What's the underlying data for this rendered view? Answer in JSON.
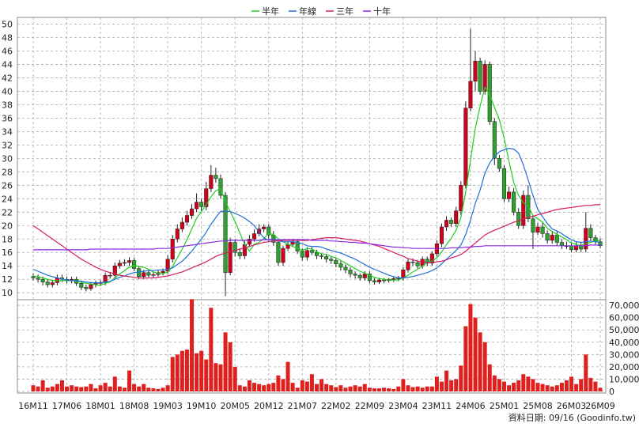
{
  "chart_data": {
    "type": "candlestick",
    "categories": [
      "16M11",
      null,
      null,
      null,
      null,
      null,
      null,
      "17M06",
      null,
      null,
      null,
      null,
      null,
      null,
      "18M01",
      null,
      null,
      null,
      null,
      null,
      null,
      "18M08",
      null,
      null,
      null,
      null,
      null,
      null,
      "19M03",
      null,
      null,
      null,
      null,
      null,
      null,
      "19M10",
      null,
      null,
      null,
      null,
      null,
      null,
      "20M05",
      null,
      null,
      null,
      null,
      null,
      null,
      "20M12",
      null,
      null,
      null,
      null,
      null,
      null,
      "21M07",
      null,
      null,
      null,
      null,
      null,
      null,
      "22M02",
      null,
      null,
      null,
      null,
      null,
      null,
      "22M09",
      null,
      null,
      null,
      null,
      null,
      null,
      "23M04",
      null,
      null,
      null,
      null,
      null,
      null,
      "23M11",
      null,
      null,
      null,
      null,
      null,
      null,
      "24M06",
      null,
      null,
      null,
      null,
      null,
      null,
      "25M01",
      null,
      null,
      null,
      null,
      null,
      null,
      "25M08",
      null,
      null,
      null,
      null,
      null,
      null,
      "26M03",
      null,
      null,
      null,
      null,
      null,
      "26M09"
    ],
    "open": [
      12.4,
      12.2,
      12.0,
      11.6,
      11.2,
      11.5,
      12.2,
      12.0,
      11.8,
      12.0,
      11.4,
      10.8,
      10.6,
      11.2,
      11.4,
      11.5,
      12.6,
      12.6,
      14.0,
      14.4,
      14.5,
      14.8,
      13.6,
      12.4,
      13.0,
      12.6,
      12.7,
      13.0,
      13.2,
      15.0,
      18.0,
      19.5,
      20.5,
      21.5,
      22.5,
      23.5,
      22.8,
      25.5,
      27.5,
      27.0,
      24.5,
      13.0,
      17.5,
      16.0,
      15.5,
      17.2,
      18.0,
      18.8,
      19.5,
      19.8,
      18.6,
      17.5,
      14.5,
      16.6,
      17.2,
      17.6,
      16.2,
      15.3,
      16.3,
      16.0,
      15.5,
      15.4,
      15.0,
      14.8,
      14.3,
      13.8,
      13.4,
      12.8,
      12.6,
      12.2,
      12.8,
      11.8,
      11.6,
      11.9,
      11.8,
      12.0,
      12.1,
      12.2,
      13.4,
      14.6,
      14.5,
      14.0,
      15.0,
      14.4,
      15.8,
      17.3,
      19.8,
      20.8,
      20.3,
      22.2,
      26.0,
      37.5,
      41.5,
      44.5,
      40.0,
      44.0,
      35.5,
      30.0,
      28.5,
      24.0,
      25.0,
      22.0,
      20.0,
      24.5,
      21.0,
      19.0,
      19.8,
      18.8,
      17.8,
      18.6,
      17.5,
      17.0,
      17.0,
      16.4,
      17.0,
      16.5,
      19.6,
      18.2,
      17.6
    ],
    "high": [
      12.9,
      12.7,
      12.4,
      12.0,
      11.9,
      12.7,
      12.7,
      12.4,
      12.4,
      12.4,
      11.8,
      11.2,
      11.6,
      11.8,
      11.9,
      13.0,
      13.1,
      14.5,
      14.9,
      15.0,
      15.3,
      15.2,
      14.0,
      13.4,
      13.4,
      13.1,
      13.4,
      13.6,
      15.6,
      18.6,
      20.2,
      21.2,
      22.2,
      23.2,
      24.8,
      24.0,
      26.5,
      29.0,
      28.6,
      27.6,
      25.0,
      18.2,
      18.0,
      16.6,
      17.8,
      18.6,
      19.4,
      20.2,
      20.2,
      20.2,
      19.2,
      18.0,
      17.0,
      17.6,
      18.0,
      18.0,
      16.6,
      16.8,
      16.8,
      16.4,
      15.9,
      15.8,
      15.4,
      15.2,
      14.7,
      14.2,
      13.8,
      13.2,
      12.9,
      13.2,
      13.2,
      12.2,
      12.2,
      12.2,
      12.2,
      12.4,
      12.5,
      13.8,
      15.0,
      15.1,
      14.9,
      15.4,
      15.4,
      16.2,
      17.8,
      20.3,
      21.4,
      21.2,
      22.8,
      26.6,
      38.5,
      49.3,
      46.0,
      45.0,
      44.6,
      44.4,
      36.0,
      30.5,
      29.0,
      25.8,
      25.6,
      22.6,
      25.2,
      26.0,
      21.5,
      20.4,
      20.4,
      19.3,
      19.2,
      19.1,
      18.0,
      17.6,
      17.5,
      17.6,
      17.4,
      22.0,
      20.2,
      18.6,
      18.1
    ],
    "low": [
      11.8,
      11.5,
      11.1,
      10.8,
      10.8,
      11.1,
      11.6,
      11.4,
      11.4,
      11.0,
      10.4,
      10.2,
      10.3,
      10.8,
      11.0,
      11.1,
      12.1,
      12.2,
      13.6,
      14.0,
      14.0,
      13.2,
      12.0,
      12.0,
      12.3,
      12.2,
      12.3,
      12.6,
      12.8,
      14.5,
      17.5,
      19.0,
      20.0,
      21.0,
      22.0,
      22.2,
      22.3,
      25.0,
      26.4,
      24.0,
      9.5,
      12.6,
      15.4,
      15.0,
      15.0,
      16.8,
      17.6,
      18.4,
      19.0,
      18.0,
      17.0,
      14.0,
      14.0,
      16.2,
      16.8,
      15.8,
      14.8,
      14.8,
      15.6,
      15.0,
      15.0,
      14.5,
      14.3,
      13.8,
      13.3,
      12.9,
      12.3,
      12.1,
      11.8,
      11.8,
      11.4,
      11.2,
      11.3,
      11.4,
      11.5,
      11.6,
      11.7,
      11.8,
      13.0,
      14.0,
      13.6,
      13.6,
      14.0,
      14.0,
      15.4,
      16.8,
      19.2,
      19.8,
      19.8,
      21.6,
      25.5,
      37.0,
      40.0,
      39.5,
      39.5,
      35.0,
      29.0,
      28.0,
      23.5,
      23.5,
      21.5,
      19.5,
      19.5,
      20.5,
      16.5,
      18.6,
      18.2,
      17.3,
      17.3,
      17.0,
      16.5,
      16.5,
      16.0,
      16.0,
      16.0,
      16.0,
      17.8,
      17.2,
      16.6
    ],
    "close": [
      12.2,
      12.0,
      11.6,
      11.2,
      11.5,
      12.2,
      12.0,
      11.8,
      12.0,
      11.4,
      10.8,
      10.6,
      11.2,
      11.4,
      11.5,
      12.6,
      12.6,
      14.0,
      14.4,
      14.5,
      14.8,
      13.6,
      12.4,
      13.0,
      12.6,
      12.7,
      13.0,
      13.2,
      15.0,
      18.0,
      19.5,
      20.5,
      21.5,
      22.5,
      23.5,
      22.8,
      25.5,
      27.5,
      27.0,
      24.5,
      13.0,
      17.5,
      16.0,
      15.5,
      17.2,
      18.0,
      18.8,
      19.5,
      19.8,
      18.6,
      17.5,
      14.5,
      16.6,
      17.2,
      17.6,
      16.2,
      15.3,
      16.3,
      16.0,
      15.5,
      15.4,
      15.0,
      14.8,
      14.3,
      13.8,
      13.4,
      12.8,
      12.6,
      12.2,
      12.8,
      11.8,
      11.6,
      11.9,
      11.8,
      12.0,
      12.1,
      12.2,
      13.4,
      14.6,
      14.5,
      14.0,
      15.0,
      14.4,
      15.8,
      17.3,
      19.8,
      20.8,
      20.3,
      22.2,
      26.0,
      37.5,
      41.5,
      44.5,
      40.0,
      44.0,
      35.5,
      30.0,
      28.5,
      24.0,
      25.0,
      22.0,
      20.0,
      24.5,
      21.0,
      19.0,
      19.8,
      18.8,
      17.8,
      18.6,
      17.5,
      17.0,
      17.0,
      16.4,
      17.0,
      16.5,
      19.6,
      18.2,
      17.6,
      17.0
    ],
    "up_color": "#d0021b",
    "down_color": "#2fa02f",
    "wick_color": "#222222",
    "series": [
      {
        "name": "半年",
        "color": "#22cc22",
        "values": [
          12.5,
          12.4,
          12.2,
          12.0,
          11.8,
          11.8,
          11.8,
          11.8,
          11.8,
          11.8,
          11.6,
          11.4,
          11.3,
          11.2,
          11.1,
          11.4,
          11.6,
          12.2,
          12.8,
          13.3,
          13.8,
          14.1,
          13.9,
          13.8,
          13.5,
          13.1,
          12.9,
          12.8,
          13.1,
          13.9,
          15.2,
          16.5,
          17.9,
          19.5,
          21.1,
          22.1,
          23.1,
          24.3,
          25.2,
          25.5,
          23.5,
          22.1,
          20.6,
          18.9,
          17.2,
          16.2,
          17.2,
          17.5,
          18.1,
          18.8,
          18.7,
          18.0,
          17.6,
          17.2,
          16.9,
          16.6,
          16.3,
          16.6,
          16.5,
          16.1,
          15.8,
          15.7,
          15.4,
          15.2,
          14.8,
          14.4,
          14.0,
          13.6,
          13.2,
          12.9,
          12.6,
          12.3,
          12.1,
          12.0,
          11.9,
          11.9,
          11.9,
          12.2,
          12.6,
          13.1,
          13.5,
          14.0,
          14.5,
          14.7,
          15.2,
          16.1,
          17.2,
          18.1,
          19.3,
          21.2,
          25.0,
          29.7,
          34.5,
          37.8,
          40.6,
          39.5,
          37.6,
          35.8,
          33.0,
          29.6,
          26.4,
          24.5,
          23.4,
          22.9,
          21.5,
          21.0,
          20.5,
          19.6,
          19.1,
          18.7,
          18.3,
          17.9,
          17.4,
          17.2,
          17.0,
          17.3,
          17.5,
          17.7,
          17.8
        ]
      },
      {
        "name": "年線",
        "color": "#1f6fd6",
        "values": [
          13.5,
          13.2,
          12.9,
          12.6,
          12.4,
          12.2,
          12.0,
          11.9,
          11.8,
          11.8,
          11.7,
          11.6,
          11.5,
          11.5,
          11.5,
          11.6,
          11.7,
          12.0,
          12.3,
          12.5,
          12.8,
          13.0,
          13.1,
          13.2,
          13.3,
          13.3,
          13.4,
          13.4,
          13.5,
          13.7,
          14.2,
          14.7,
          15.4,
          16.2,
          17.1,
          18.0,
          19.0,
          20.2,
          21.2,
          22.1,
          22.1,
          22.1,
          21.8,
          21.5,
          21.1,
          20.6,
          20.0,
          19.0,
          18.2,
          17.8,
          18.0,
          17.7,
          17.6,
          17.6,
          17.6,
          17.5,
          17.3,
          17.0,
          16.9,
          16.9,
          16.8,
          16.5,
          16.3,
          16.1,
          15.9,
          15.6,
          15.3,
          15.0,
          14.6,
          14.2,
          13.8,
          13.5,
          13.2,
          12.9,
          12.6,
          12.4,
          12.2,
          12.2,
          12.3,
          12.4,
          12.6,
          12.8,
          13.0,
          13.3,
          13.7,
          14.3,
          15.0,
          15.6,
          16.3,
          17.1,
          18.7,
          20.8,
          23.3,
          25.3,
          27.8,
          29.3,
          30.3,
          31.0,
          31.3,
          31.5,
          31.4,
          30.8,
          29.0,
          26.8,
          24.5,
          22.4,
          21.3,
          20.3,
          19.5,
          19.2,
          18.8,
          18.3,
          17.9,
          17.6,
          17.5,
          17.6,
          17.7,
          17.6,
          17.5
        ]
      },
      {
        "name": "三年",
        "color": "#d81b60",
        "values": [
          20.0,
          19.5,
          19.0,
          18.5,
          18.0,
          17.5,
          17.0,
          16.5,
          16.0,
          15.5,
          15.0,
          14.6,
          14.2,
          13.8,
          13.5,
          13.2,
          13.0,
          12.8,
          12.6,
          12.5,
          12.4,
          12.3,
          12.2,
          12.2,
          12.2,
          12.2,
          12.3,
          12.4,
          12.5,
          12.7,
          12.9,
          13.1,
          13.4,
          13.7,
          14.0,
          14.3,
          14.6,
          15.0,
          15.4,
          15.7,
          15.9,
          16.1,
          16.3,
          16.5,
          16.7,
          16.9,
          17.1,
          17.3,
          17.5,
          17.6,
          17.7,
          17.7,
          17.8,
          17.8,
          17.8,
          17.8,
          17.8,
          17.8,
          17.9,
          18.0,
          18.1,
          18.2,
          18.2,
          18.2,
          18.1,
          18.0,
          17.9,
          17.8,
          17.7,
          17.5,
          17.3,
          17.1,
          16.9,
          16.6,
          16.3,
          16.0,
          15.7,
          15.4,
          15.1,
          14.9,
          14.7,
          14.6,
          14.5,
          14.5,
          14.6,
          14.7,
          14.9,
          15.2,
          15.4,
          15.7,
          16.2,
          16.8,
          17.4,
          18.0,
          18.6,
          19.0,
          19.3,
          19.6,
          19.9,
          20.2,
          20.5,
          20.7,
          21.0,
          21.2,
          21.4,
          21.6,
          21.8,
          22.0,
          22.2,
          22.4,
          22.5,
          22.6,
          22.7,
          22.8,
          22.9,
          23.0,
          23.0,
          23.1,
          23.1
        ]
      },
      {
        "name": "十年",
        "color": "#8a2be2",
        "values": [
          16.4,
          16.4,
          16.4,
          16.4,
          16.4,
          16.4,
          16.4,
          16.4,
          16.4,
          16.4,
          16.4,
          16.4,
          16.5,
          16.5,
          16.5,
          16.5,
          16.5,
          16.5,
          16.5,
          16.5,
          16.5,
          16.5,
          16.5,
          16.5,
          16.5,
          16.5,
          16.6,
          16.6,
          16.6,
          16.7,
          16.8,
          16.9,
          17.0,
          17.1,
          17.2,
          17.3,
          17.4,
          17.5,
          17.6,
          17.7,
          17.7,
          17.8,
          17.8,
          17.8,
          17.8,
          17.8,
          17.8,
          17.8,
          17.9,
          17.9,
          17.9,
          17.9,
          17.9,
          17.9,
          17.9,
          17.9,
          17.9,
          17.9,
          17.8,
          17.8,
          17.8,
          17.8,
          17.7,
          17.7,
          17.6,
          17.6,
          17.5,
          17.5,
          17.4,
          17.4,
          17.3,
          17.2,
          17.1,
          17.0,
          16.9,
          16.8,
          16.8,
          16.7,
          16.7,
          16.6,
          16.6,
          16.6,
          16.6,
          16.6,
          16.6,
          16.6,
          16.6,
          16.7,
          16.7,
          16.7,
          16.8,
          16.8,
          16.9,
          16.9,
          17.0,
          17.0,
          17.0,
          17.0,
          17.0,
          17.0,
          17.0,
          17.0,
          17.0,
          17.0,
          17.0,
          17.0,
          17.0,
          17.0,
          17.0,
          17.0,
          17.0,
          17.0,
          17.0,
          17.0,
          17.0,
          17.0,
          17.1,
          17.1,
          17.1
        ]
      }
    ],
    "ylim": [
      9.2,
      51
    ],
    "yticks": [
      10,
      12,
      14,
      16,
      18,
      20,
      22,
      24,
      26,
      28,
      30,
      32,
      34,
      36,
      38,
      40,
      42,
      44,
      46,
      48,
      50
    ],
    "volume": {
      "color": "#e0201f",
      "values": [
        5000,
        4000,
        9000,
        3000,
        4000,
        6000,
        9000,
        4000,
        5000,
        4000,
        3500,
        4000,
        6000,
        2500,
        5000,
        7000,
        4000,
        12000,
        4000,
        3000,
        17000,
        6000,
        4000,
        6000,
        3000,
        2500,
        2000,
        3000,
        5000,
        28000,
        30000,
        33000,
        34000,
        75000,
        31000,
        33000,
        26000,
        68000,
        23000,
        22000,
        48000,
        40000,
        20000,
        5000,
        4000,
        9000,
        7000,
        6000,
        5000,
        6000,
        7000,
        13000,
        10000,
        24000,
        7000,
        3000,
        9000,
        8000,
        14000,
        6000,
        10000,
        6000,
        5000,
        3500,
        5000,
        3000,
        4000,
        5000,
        4000,
        6000,
        3000,
        2500,
        2500,
        3000,
        2500,
        2000,
        4000,
        10000,
        5000,
        3500,
        4000,
        3000,
        4000,
        4000,
        12000,
        8000,
        17000,
        9000,
        10000,
        21000,
        53000,
        71000,
        60000,
        48000,
        40000,
        22000,
        13000,
        10000,
        8000,
        5000,
        7000,
        9000,
        14000,
        12000,
        10000,
        7000,
        6000,
        5000,
        4000,
        5000,
        7000,
        9000,
        12000,
        6000,
        10000,
        30000,
        11000,
        8000,
        3000
      ],
      "y2lim": [
        0,
        72000
      ],
      "y2ticks": [
        0,
        {
          "value": 10000,
          "label": "10,000"
        },
        {
          "value": 20000,
          "label": "20,000"
        },
        {
          "value": 30000,
          "label": "30,000"
        },
        {
          "value": 40000,
          "label": "40,000"
        },
        {
          "value": 50000,
          "label": "50,000"
        },
        {
          "value": 60000,
          "label": "60,000"
        },
        {
          "value": 70000,
          "label": "70,000"
        }
      ]
    },
    "grid": true,
    "footnote": "資料日期: 09/16 (Goodinfo.tw)"
  }
}
